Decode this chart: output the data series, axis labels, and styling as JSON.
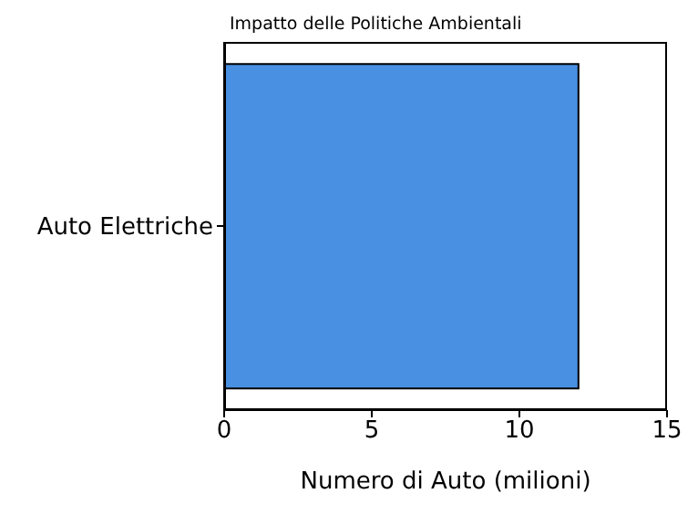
{
  "chart_data": {
    "type": "bar",
    "orientation": "horizontal",
    "title": "Impatto delle Politiche Ambientali",
    "xlabel": "Numero di Auto (milioni)",
    "categories": [
      "Auto Elettriche"
    ],
    "values": [
      12
    ],
    "color": "#4a90e2",
    "xlim": [
      0,
      15
    ],
    "xticks": [
      0,
      5,
      10,
      15
    ],
    "grid": false,
    "legend": false
  }
}
